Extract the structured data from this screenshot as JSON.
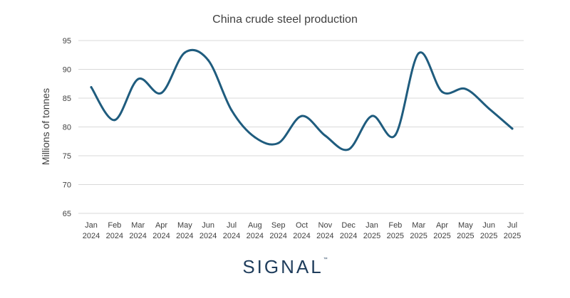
{
  "chart_data": {
    "type": "line",
    "title": "China crude steel production",
    "ylabel": "Millions of tonnes",
    "xlabel": "",
    "ylim": [
      65,
      95
    ],
    "yticks": [
      65,
      70,
      75,
      80,
      85,
      90,
      95
    ],
    "grid": true,
    "categories": [
      [
        "Jan",
        "2024"
      ],
      [
        "Feb",
        "2024"
      ],
      [
        "Mar",
        "2024"
      ],
      [
        "Apr",
        "2024"
      ],
      [
        "May",
        "2024"
      ],
      [
        "Jun",
        "2024"
      ],
      [
        "Jul",
        "2024"
      ],
      [
        "Aug",
        "2024"
      ],
      [
        "Sep",
        "2024"
      ],
      [
        "Oct",
        "2024"
      ],
      [
        "Nov",
        "2024"
      ],
      [
        "Dec",
        "2024"
      ],
      [
        "Jan",
        "2025"
      ],
      [
        "Feb",
        "2025"
      ],
      [
        "Mar",
        "2025"
      ],
      [
        "Apr",
        "2025"
      ],
      [
        "May",
        "2025"
      ],
      [
        "Jun",
        "2025"
      ],
      [
        "Jul",
        "2025"
      ]
    ],
    "series": [
      {
        "color": "#1f5c7e",
        "values": [
          86.9,
          81.2,
          88.3,
          85.9,
          92.9,
          91.6,
          82.9,
          78.2,
          77.2,
          81.9,
          78.5,
          76.1,
          81.9,
          78.6,
          92.8,
          86.1,
          86.6,
          83.2,
          79.7
        ]
      }
    ]
  },
  "branding": {
    "logo_text": "SIGNAL",
    "logo_tm": "™"
  }
}
